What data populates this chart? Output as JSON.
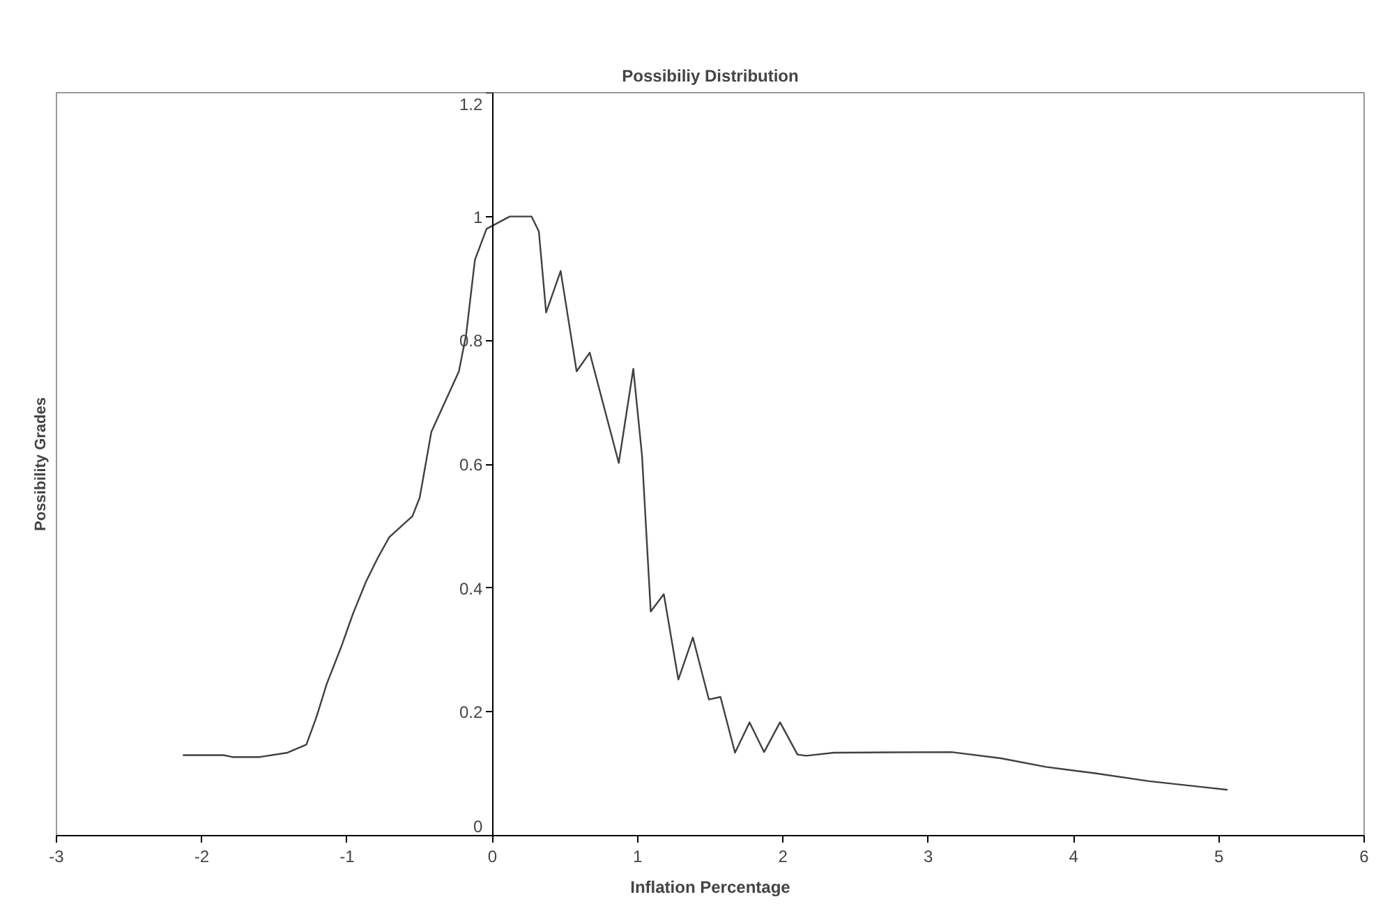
{
  "chart_data": {
    "type": "line",
    "title": "Possibiliy Distribution",
    "xlabel": "Inflation Percentage",
    "ylabel": "Possibility Grades",
    "x": [
      -2.13,
      -1.85,
      -1.79,
      -1.6,
      -1.41,
      -1.28,
      -1.21,
      -1.14,
      -1.04,
      -0.96,
      -0.87,
      -0.79,
      -0.71,
      -0.55,
      -0.5,
      -0.42,
      -0.23,
      -0.18,
      -0.12,
      -0.04,
      0.12,
      0.27,
      0.32,
      0.37,
      0.47,
      0.58,
      0.67,
      0.87,
      0.97,
      1.03,
      1.09,
      1.18,
      1.28,
      1.38,
      1.49,
      1.57,
      1.67,
      1.77,
      1.87,
      1.98,
      2.1,
      2.16,
      2.35,
      3.16,
      3.5,
      3.81,
      4.14,
      4.52,
      4.87,
      5.06
    ],
    "series": [
      {
        "color": "#404040",
        "values": [
          0.13,
          0.13,
          0.127,
          0.127,
          0.134,
          0.147,
          0.192,
          0.245,
          0.305,
          0.358,
          0.41,
          0.448,
          0.482,
          0.516,
          0.546,
          0.652,
          0.75,
          0.81,
          0.93,
          0.98,
          1.0,
          1.0,
          0.976,
          0.845,
          0.912,
          0.75,
          0.78,
          0.602,
          0.754,
          0.614,
          0.362,
          0.39,
          0.252,
          0.32,
          0.22,
          0.224,
          0.134,
          0.183,
          0.135,
          0.183,
          0.131,
          0.129,
          0.134,
          0.135,
          0.125,
          0.111,
          0.101,
          0.088,
          0.079,
          0.074
        ]
      }
    ],
    "xlim": [
      -3,
      6
    ],
    "xticks": [
      -3,
      -2,
      -1,
      0,
      1,
      2,
      3,
      4,
      5,
      6
    ],
    "ylim": [
      0,
      1.2
    ],
    "yticks": [
      0,
      0.2,
      0.4,
      0.6,
      0.8,
      1,
      1.2
    ],
    "grid": false,
    "marker": "none",
    "line_style": "solid"
  }
}
